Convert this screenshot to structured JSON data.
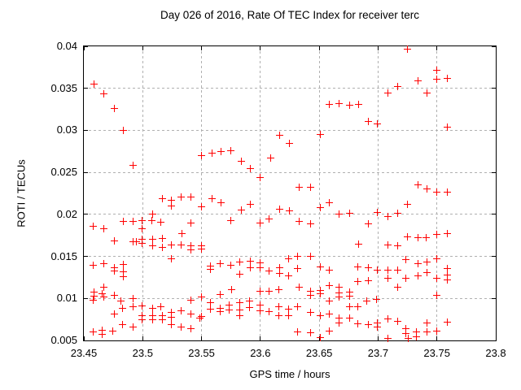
{
  "chart_data": {
    "type": "scatter",
    "title": "Day 026 of 2016, Rate Of TEC Index for receiver terc",
    "xlabel": "GPS time / hours",
    "ylabel": "ROTI / TECUs",
    "xlim": [
      23.45,
      23.8
    ],
    "ylim": [
      0.005,
      0.04
    ],
    "x_ticks": [
      23.45,
      23.5,
      23.55,
      23.6,
      23.65,
      23.7,
      23.75,
      23.8
    ],
    "x_tick_labels": [
      "23.45",
      "23.5",
      "23.55",
      "23.6",
      "23.65",
      "23.7",
      "23.75",
      "23.8"
    ],
    "y_ticks": [
      0.005,
      0.01,
      0.015,
      0.02,
      0.025,
      0.03,
      0.035,
      0.04
    ],
    "y_tick_labels": [
      "0.005",
      "0.01",
      "0.015",
      "0.02",
      "0.025",
      "0.03",
      "0.035",
      "0.04"
    ],
    "grid": true,
    "legend": "none",
    "marker": {
      "shape": "plus",
      "color": "#ff0000",
      "size": 9
    },
    "colors": {
      "frame": "#000000",
      "grid": "#b0b0b0",
      "background": "#ffffff",
      "text": "#000000"
    },
    "series": [
      {
        "name": "ROTI",
        "points": [
          [
            23.458,
            0.0185
          ],
          [
            23.458,
            0.0139
          ],
          [
            23.458,
            0.0097
          ],
          [
            23.458,
            0.006
          ],
          [
            23.459,
            0.0355
          ],
          [
            23.459,
            0.0107
          ],
          [
            23.459,
            0.0102
          ],
          [
            23.466,
            0.0105
          ],
          [
            23.466,
            0.0062
          ],
          [
            23.466,
            0.0057
          ],
          [
            23.467,
            0.0343
          ],
          [
            23.467,
            0.0182
          ],
          [
            23.467,
            0.0141
          ],
          [
            23.467,
            0.0113
          ],
          [
            23.467,
            0.0101
          ],
          [
            23.475,
            0.0061
          ],
          [
            23.476,
            0.0326
          ],
          [
            23.476,
            0.0168
          ],
          [
            23.476,
            0.0136
          ],
          [
            23.476,
            0.0132
          ],
          [
            23.476,
            0.0103
          ],
          [
            23.476,
            0.0081
          ],
          [
            23.482,
            0.0096
          ],
          [
            23.483,
            0.0088
          ],
          [
            23.483,
            0.0068
          ],
          [
            23.484,
            0.0299
          ],
          [
            23.484,
            0.0191
          ],
          [
            23.484,
            0.014
          ],
          [
            23.484,
            0.0131
          ],
          [
            23.484,
            0.0125
          ],
          [
            23.492,
            0.0258
          ],
          [
            23.492,
            0.0191
          ],
          [
            23.492,
            0.0167
          ],
          [
            23.492,
            0.0099
          ],
          [
            23.492,
            0.009
          ],
          [
            23.492,
            0.0065
          ],
          [
            23.495,
            0.0167
          ],
          [
            23.5,
            0.0192
          ],
          [
            23.5,
            0.0182
          ],
          [
            23.5,
            0.017
          ],
          [
            23.5,
            0.0165
          ],
          [
            23.5,
            0.0091
          ],
          [
            23.5,
            0.0079
          ],
          [
            23.5,
            0.0074
          ],
          [
            23.508,
            0.0192
          ],
          [
            23.509,
            0.02
          ],
          [
            23.509,
            0.017
          ],
          [
            23.509,
            0.0162
          ],
          [
            23.509,
            0.0088
          ],
          [
            23.509,
            0.0079
          ],
          [
            23.509,
            0.0074
          ],
          [
            23.516,
            0.019
          ],
          [
            23.516,
            0.009
          ],
          [
            23.517,
            0.0218
          ],
          [
            23.517,
            0.0171
          ],
          [
            23.517,
            0.016
          ],
          [
            23.517,
            0.0079
          ],
          [
            23.517,
            0.0074
          ],
          [
            23.525,
            0.0216
          ],
          [
            23.525,
            0.021
          ],
          [
            23.525,
            0.0163
          ],
          [
            23.525,
            0.0147
          ],
          [
            23.525,
            0.0083
          ],
          [
            23.525,
            0.0077
          ],
          [
            23.525,
            0.0068
          ],
          [
            23.533,
            0.022
          ],
          [
            23.533,
            0.0163
          ],
          [
            23.533,
            0.0085
          ],
          [
            23.533,
            0.0065
          ],
          [
            23.534,
            0.0177
          ],
          [
            23.541,
            0.022
          ],
          [
            23.541,
            0.0189
          ],
          [
            23.541,
            0.0162
          ],
          [
            23.541,
            0.0157
          ],
          [
            23.541,
            0.0097
          ],
          [
            23.541,
            0.0081
          ],
          [
            23.541,
            0.0064
          ],
          [
            23.549,
            0.0076
          ],
          [
            23.55,
            0.0269
          ],
          [
            23.55,
            0.0209
          ],
          [
            23.55,
            0.0162
          ],
          [
            23.55,
            0.0158
          ],
          [
            23.55,
            0.0101
          ],
          [
            23.55,
            0.0078
          ],
          [
            23.558,
            0.0138
          ],
          [
            23.558,
            0.0134
          ],
          [
            23.558,
            0.0094
          ],
          [
            23.558,
            0.0087
          ],
          [
            23.559,
            0.0272
          ],
          [
            23.559,
            0.0218
          ],
          [
            23.566,
            0.0141
          ],
          [
            23.566,
            0.0104
          ],
          [
            23.566,
            0.0088
          ],
          [
            23.566,
            0.0084
          ],
          [
            23.567,
            0.0274
          ],
          [
            23.567,
            0.0213
          ],
          [
            23.574,
            0.0092
          ],
          [
            23.574,
            0.0086
          ],
          [
            23.575,
            0.0275
          ],
          [
            23.575,
            0.0192
          ],
          [
            23.575,
            0.0139
          ],
          [
            23.576,
            0.011
          ],
          [
            23.583,
            0.0143
          ],
          [
            23.583,
            0.0128
          ],
          [
            23.583,
            0.0094
          ],
          [
            23.583,
            0.0086
          ],
          [
            23.583,
            0.0079
          ],
          [
            23.584,
            0.0263
          ],
          [
            23.584,
            0.0205
          ],
          [
            23.591,
            0.0096
          ],
          [
            23.591,
            0.0089
          ],
          [
            23.592,
            0.0254
          ],
          [
            23.592,
            0.0211
          ],
          [
            23.592,
            0.0144
          ],
          [
            23.592,
            0.0136
          ],
          [
            23.6,
            0.0243
          ],
          [
            23.6,
            0.0189
          ],
          [
            23.6,
            0.0142
          ],
          [
            23.6,
            0.0136
          ],
          [
            23.6,
            0.0108
          ],
          [
            23.6,
            0.0092
          ],
          [
            23.6,
            0.0085
          ],
          [
            23.608,
            0.0194
          ],
          [
            23.608,
            0.0132
          ],
          [
            23.608,
            0.0108
          ],
          [
            23.608,
            0.0084
          ],
          [
            23.609,
            0.0267
          ],
          [
            23.616,
            0.011
          ],
          [
            23.616,
            0.009
          ],
          [
            23.616,
            0.0079
          ],
          [
            23.617,
            0.0294
          ],
          [
            23.617,
            0.0206
          ],
          [
            23.617,
            0.0136
          ],
          [
            23.617,
            0.0129
          ],
          [
            23.624,
            0.0147
          ],
          [
            23.624,
            0.0126
          ],
          [
            23.624,
            0.0087
          ],
          [
            23.624,
            0.0079
          ],
          [
            23.625,
            0.0284
          ],
          [
            23.625,
            0.0204
          ],
          [
            23.632,
            0.015
          ],
          [
            23.632,
            0.0135
          ],
          [
            23.632,
            0.009
          ],
          [
            23.632,
            0.006
          ],
          [
            23.633,
            0.0232
          ],
          [
            23.633,
            0.0191
          ],
          [
            23.633,
            0.0113
          ],
          [
            23.643,
            0.0232
          ],
          [
            23.643,
            0.0188
          ],
          [
            23.643,
            0.015
          ],
          [
            23.643,
            0.0108
          ],
          [
            23.643,
            0.0103
          ],
          [
            23.643,
            0.0083
          ],
          [
            23.643,
            0.0059
          ],
          [
            23.651,
            0.0295
          ],
          [
            23.651,
            0.0208
          ],
          [
            23.651,
            0.0137
          ],
          [
            23.651,
            0.0109
          ],
          [
            23.651,
            0.0105
          ],
          [
            23.651,
            0.0079
          ],
          [
            23.651,
            0.0053
          ],
          [
            23.659,
            0.033
          ],
          [
            23.659,
            0.0213
          ],
          [
            23.659,
            0.0133
          ],
          [
            23.659,
            0.0115
          ],
          [
            23.659,
            0.0096
          ],
          [
            23.659,
            0.0081
          ],
          [
            23.659,
            0.0061
          ],
          [
            23.667,
            0.0331
          ],
          [
            23.667,
            0.02
          ],
          [
            23.667,
            0.0113
          ],
          [
            23.667,
            0.0106
          ],
          [
            23.667,
            0.0101
          ],
          [
            23.667,
            0.0076
          ],
          [
            23.667,
            0.007
          ],
          [
            23.676,
            0.0329
          ],
          [
            23.676,
            0.0201
          ],
          [
            23.676,
            0.0107
          ],
          [
            23.676,
            0.0102
          ],
          [
            23.676,
            0.009
          ],
          [
            23.676,
            0.0076
          ],
          [
            23.683,
            0.0137
          ],
          [
            23.683,
            0.012
          ],
          [
            23.683,
            0.009
          ],
          [
            23.683,
            0.0069
          ],
          [
            23.684,
            0.033
          ],
          [
            23.684,
            0.0164
          ],
          [
            23.691,
            0.0096
          ],
          [
            23.692,
            0.031
          ],
          [
            23.692,
            0.0188
          ],
          [
            23.692,
            0.0136
          ],
          [
            23.692,
            0.0121
          ],
          [
            23.692,
            0.0068
          ],
          [
            23.699,
            0.0098
          ],
          [
            23.7,
            0.0307
          ],
          [
            23.7,
            0.0202
          ],
          [
            23.7,
            0.0133
          ],
          [
            23.7,
            0.007
          ],
          [
            23.7,
            0.0065
          ],
          [
            23.709,
            0.0344
          ],
          [
            23.709,
            0.0197
          ],
          [
            23.709,
            0.0163
          ],
          [
            23.709,
            0.0133
          ],
          [
            23.709,
            0.0123
          ],
          [
            23.709,
            0.0075
          ],
          [
            23.709,
            0.0052
          ],
          [
            23.717,
            0.0352
          ],
          [
            23.717,
            0.0201
          ],
          [
            23.717,
            0.0162
          ],
          [
            23.717,
            0.0133
          ],
          [
            23.717,
            0.0113
          ],
          [
            23.717,
            0.0072
          ],
          [
            23.724,
            0.0146
          ],
          [
            23.724,
            0.0123
          ],
          [
            23.724,
            0.0064
          ],
          [
            23.724,
            0.0058
          ],
          [
            23.725,
            0.0396
          ],
          [
            23.725,
            0.0211
          ],
          [
            23.725,
            0.0173
          ],
          [
            23.726,
            0.0052
          ],
          [
            23.733,
            0.006
          ],
          [
            23.733,
            0.0054
          ],
          [
            23.734,
            0.0358
          ],
          [
            23.734,
            0.0235
          ],
          [
            23.734,
            0.0172
          ],
          [
            23.734,
            0.0141
          ],
          [
            23.734,
            0.0126
          ],
          [
            23.741,
            0.0172
          ],
          [
            23.742,
            0.0344
          ],
          [
            23.742,
            0.023
          ],
          [
            23.742,
            0.0143
          ],
          [
            23.742,
            0.013
          ],
          [
            23.742,
            0.007
          ],
          [
            23.742,
            0.006
          ],
          [
            23.75,
            0.0371
          ],
          [
            23.75,
            0.036
          ],
          [
            23.75,
            0.0226
          ],
          [
            23.75,
            0.0176
          ],
          [
            23.75,
            0.0147
          ],
          [
            23.75,
            0.0123
          ],
          [
            23.75,
            0.0103
          ],
          [
            23.75,
            0.0061
          ],
          [
            23.759,
            0.0361
          ],
          [
            23.759,
            0.0303
          ],
          [
            23.759,
            0.0226
          ],
          [
            23.759,
            0.0177
          ],
          [
            23.759,
            0.0135
          ],
          [
            23.759,
            0.0127
          ],
          [
            23.759,
            0.0122
          ],
          [
            23.759,
            0.0071
          ]
        ]
      }
    ]
  }
}
